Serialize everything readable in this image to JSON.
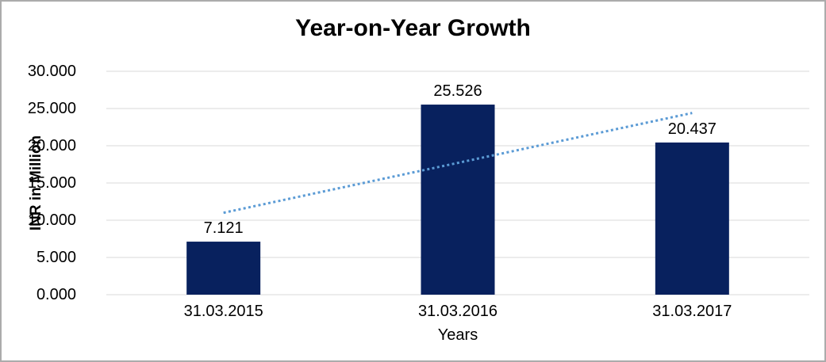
{
  "window": {
    "background": "#FFFFFF",
    "border_color": "#ABABAB"
  },
  "chart_data": {
    "type": "bar",
    "title": "Year-on-Year Growth",
    "xlabel": "Years",
    "ylabel": "INR in Million",
    "categories": [
      "31.03.2015",
      "31.03.2016",
      "31.03.2017"
    ],
    "values": [
      7121,
      25526,
      20437
    ],
    "data_labels": [
      "7.121",
      "25.526",
      "20.437"
    ],
    "ylim": [
      0,
      30000
    ],
    "yticks": [
      0,
      5000,
      10000,
      15000,
      20000,
      25000,
      30000
    ],
    "ytick_labels": [
      "0.000",
      "5.000",
      "10.000",
      "15.000",
      "20.000",
      "25.000",
      "30.000"
    ],
    "grid": true,
    "legend": false,
    "trendline": {
      "style": "dotted",
      "color": "#5B9BD5",
      "start_value": 11000,
      "end_value": 24400
    },
    "colors": {
      "bar": "#08215E",
      "grid": "#D9D9D9",
      "axis": "#D9D9D9",
      "text": "#000000"
    }
  }
}
